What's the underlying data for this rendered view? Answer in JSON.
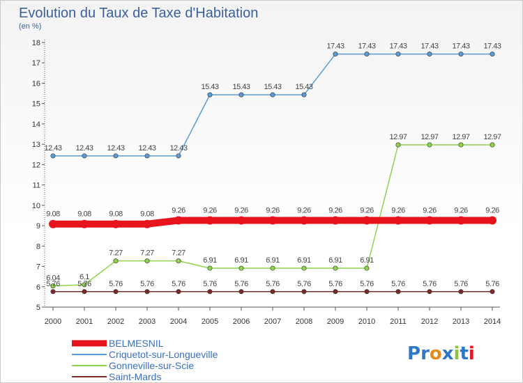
{
  "chart_data": {
    "type": "line",
    "title": "Evolution du Taux de Taxe d'Habitation",
    "subtitle": "(en %)",
    "xlabel": "",
    "ylabel": "",
    "x": [
      "2000",
      "2001",
      "2002",
      "2003",
      "2004",
      "2005",
      "2006",
      "2007",
      "2008",
      "2009",
      "2010",
      "2011",
      "2012",
      "2013",
      "2014"
    ],
    "ylim": [
      5,
      18
    ],
    "yticks": [
      "5",
      "6",
      "7",
      "8",
      "9",
      "10",
      "11",
      "12",
      "13",
      "14",
      "15",
      "16",
      "17",
      "18"
    ],
    "grid": false,
    "legend_position": "bottom-left",
    "series": [
      {
        "name": "BELMESNIL",
        "color": "#e8141d",
        "values": [
          9.08,
          9.08,
          9.08,
          9.08,
          9.26,
          9.26,
          9.26,
          9.26,
          9.26,
          9.26,
          9.26,
          9.26,
          9.26,
          9.26,
          9.26
        ],
        "labels": [
          "9.08",
          "9.08",
          "9.08",
          "9.08",
          "9.26",
          "9.26",
          "9.26",
          "9.26",
          "9.26",
          "9.26",
          "9.26",
          "9.26",
          "9.26",
          "9.26",
          "9.26"
        ]
      },
      {
        "name": "Criquetot-sur-Longueville",
        "color": "#5a9bd5",
        "values": [
          12.43,
          12.43,
          12.43,
          12.43,
          12.43,
          15.43,
          15.43,
          15.43,
          15.43,
          17.43,
          17.43,
          17.43,
          17.43,
          17.43,
          17.43
        ],
        "labels": [
          "12.43",
          "12.43",
          "12.43",
          "12.43",
          "12.43",
          "15.43",
          "15.43",
          "15.43",
          "15.43",
          "17.43",
          "17.43",
          "17.43",
          "17.43",
          "17.43",
          "17.43"
        ]
      },
      {
        "name": "Gonneville-sur-Scie",
        "color": "#8fd34a",
        "values": [
          6.04,
          6.1,
          7.27,
          7.27,
          7.27,
          6.91,
          6.91,
          6.91,
          6.91,
          6.91,
          6.91,
          12.97,
          12.97,
          12.97,
          12.97
        ],
        "labels": [
          "6.04",
          "6.1",
          "7.27",
          "7.27",
          "7.27",
          "6.91",
          "6.91",
          "6.91",
          "6.91",
          "6.91",
          "6.91",
          "12.97",
          "12.97",
          "12.97",
          "12.97"
        ]
      },
      {
        "name": "Saint-Mards",
        "color": "#7b2a2a",
        "values": [
          5.76,
          5.76,
          5.76,
          5.76,
          5.76,
          5.76,
          5.76,
          5.76,
          5.76,
          5.76,
          5.76,
          5.76,
          5.76,
          5.76,
          5.76
        ],
        "labels": [
          "5.76",
          "5.76",
          "5.76",
          "5.76",
          "5.76",
          "5.76",
          "5.76",
          "5.76",
          "5.76",
          "5.76",
          "5.76",
          "5.76",
          "5.76",
          "5.76",
          "5.76"
        ]
      }
    ]
  },
  "logo": {
    "text": "Proxiti",
    "letters": [
      "P",
      "r",
      "o",
      "x",
      "i",
      "t",
      "i"
    ],
    "letter_colors": [
      "#2f78c8",
      "#2f78c8",
      "#e88a1a",
      "#2f78c8",
      "#8ac43a",
      "#2f78c8",
      "#e8141d"
    ]
  }
}
